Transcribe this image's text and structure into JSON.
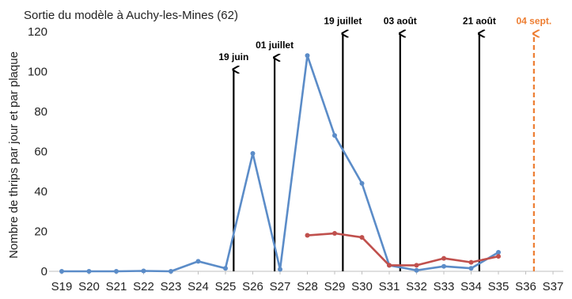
{
  "chart_data": {
    "type": "line",
    "subtitle": "Sortie du modèle à Auchy-les-Mines (62)",
    "ylabel": "Nombre de thrips par jour et par plaque",
    "xlabel": "",
    "ylim": [
      0,
      120
    ],
    "yticks": [
      0,
      20,
      40,
      60,
      80,
      100,
      120
    ],
    "grid": false,
    "categories": [
      "S19",
      "S20",
      "S21",
      "S22",
      "S23",
      "S24",
      "S25",
      "S26",
      "S27",
      "S28",
      "S29",
      "S30",
      "S31",
      "S32",
      "S33",
      "S34",
      "S35",
      "S36",
      "S37"
    ],
    "series": [
      {
        "color": "#5b8cc8",
        "values": [
          0,
          0,
          0,
          0.2,
          0,
          5,
          1.5,
          59,
          1,
          108,
          68,
          44,
          3,
          0.5,
          2.5,
          1.5,
          9.5,
          null,
          null
        ]
      },
      {
        "color": "#c0504d",
        "values": [
          null,
          null,
          null,
          null,
          null,
          null,
          null,
          null,
          null,
          18,
          19,
          17,
          3,
          3,
          6.5,
          4.5,
          7.5,
          null,
          null
        ]
      }
    ],
    "annotations": [
      {
        "label": "19 juin",
        "x": 25.3,
        "top": 101,
        "color": "#000000",
        "style": "solid"
      },
      {
        "label": "01 juillet",
        "x": 26.8,
        "top": 107,
        "color": "#000000",
        "style": "solid"
      },
      {
        "label": "19 juillet",
        "x": 29.3,
        "top": 119,
        "color": "#000000",
        "style": "solid"
      },
      {
        "label": "03 août",
        "x": 31.4,
        "top": 119,
        "color": "#000000",
        "style": "solid"
      },
      {
        "label": "21 août",
        "x": 34.3,
        "top": 119,
        "color": "#000000",
        "style": "solid"
      },
      {
        "label": "04 sept.",
        "x": 36.3,
        "top": 119,
        "color": "#ed7d31",
        "style": "dashed"
      }
    ]
  }
}
